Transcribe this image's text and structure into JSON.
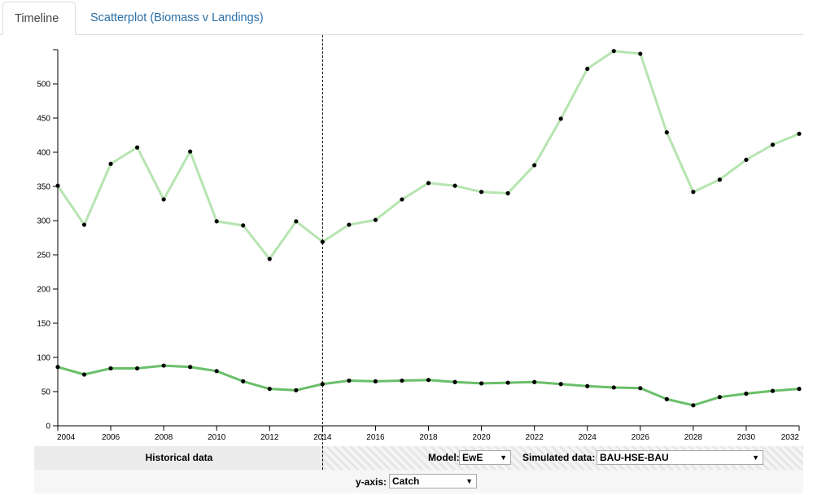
{
  "tabs": {
    "timeline": "Timeline",
    "scatterplot": "Scatterplot (Biomass v Landings)"
  },
  "controls": {
    "historical_label": "Historical data",
    "model_label": "Model:",
    "model_value": "EwE",
    "simulated_label": "Simulated data:",
    "simulated_value": "BAU-HSE-BAU",
    "yaxis_label": "y-axis:",
    "yaxis_value": "Catch",
    "dropdown_arrow": "▼"
  },
  "colors": {
    "light_line": "#b6e4b0",
    "dark_line": "#6abf69",
    "point": "#000000",
    "divider": "#000000"
  },
  "chart_data": {
    "type": "line",
    "title": "",
    "xlabel": "",
    "ylabel": "",
    "x": [
      2004,
      2005,
      2006,
      2007,
      2008,
      2009,
      2010,
      2011,
      2012,
      2013,
      2014,
      2015,
      2016,
      2017,
      2018,
      2019,
      2020,
      2021,
      2022,
      2023,
      2024,
      2025,
      2026,
      2027,
      2028,
      2029,
      2030,
      2031,
      2032
    ],
    "xlim": [
      2004,
      2032
    ],
    "ylim": [
      0,
      550
    ],
    "xticks": [
      2004,
      2006,
      2008,
      2010,
      2012,
      2014,
      2016,
      2018,
      2020,
      2022,
      2024,
      2026,
      2028,
      2030,
      2032
    ],
    "yticks": [
      0,
      50,
      100,
      150,
      200,
      250,
      300,
      350,
      400,
      450,
      500
    ],
    "divider_x": 2014,
    "grid": false,
    "series": [
      {
        "color": "#b6e4b0",
        "values": [
          351,
          294,
          383,
          407,
          331,
          401,
          299,
          293,
          244,
          299,
          269,
          294,
          301,
          331,
          355,
          351,
          342,
          340,
          381,
          449,
          522,
          548,
          544,
          429,
          342,
          360,
          389,
          411,
          427
        ]
      },
      {
        "color": "#6abf69",
        "values": [
          86,
          75,
          84,
          84,
          88,
          86,
          80,
          65,
          54,
          52,
          61,
          66,
          65,
          66,
          67,
          64,
          62,
          63,
          64,
          61,
          58,
          56,
          55,
          39,
          30,
          42,
          47,
          51,
          54
        ]
      }
    ]
  }
}
